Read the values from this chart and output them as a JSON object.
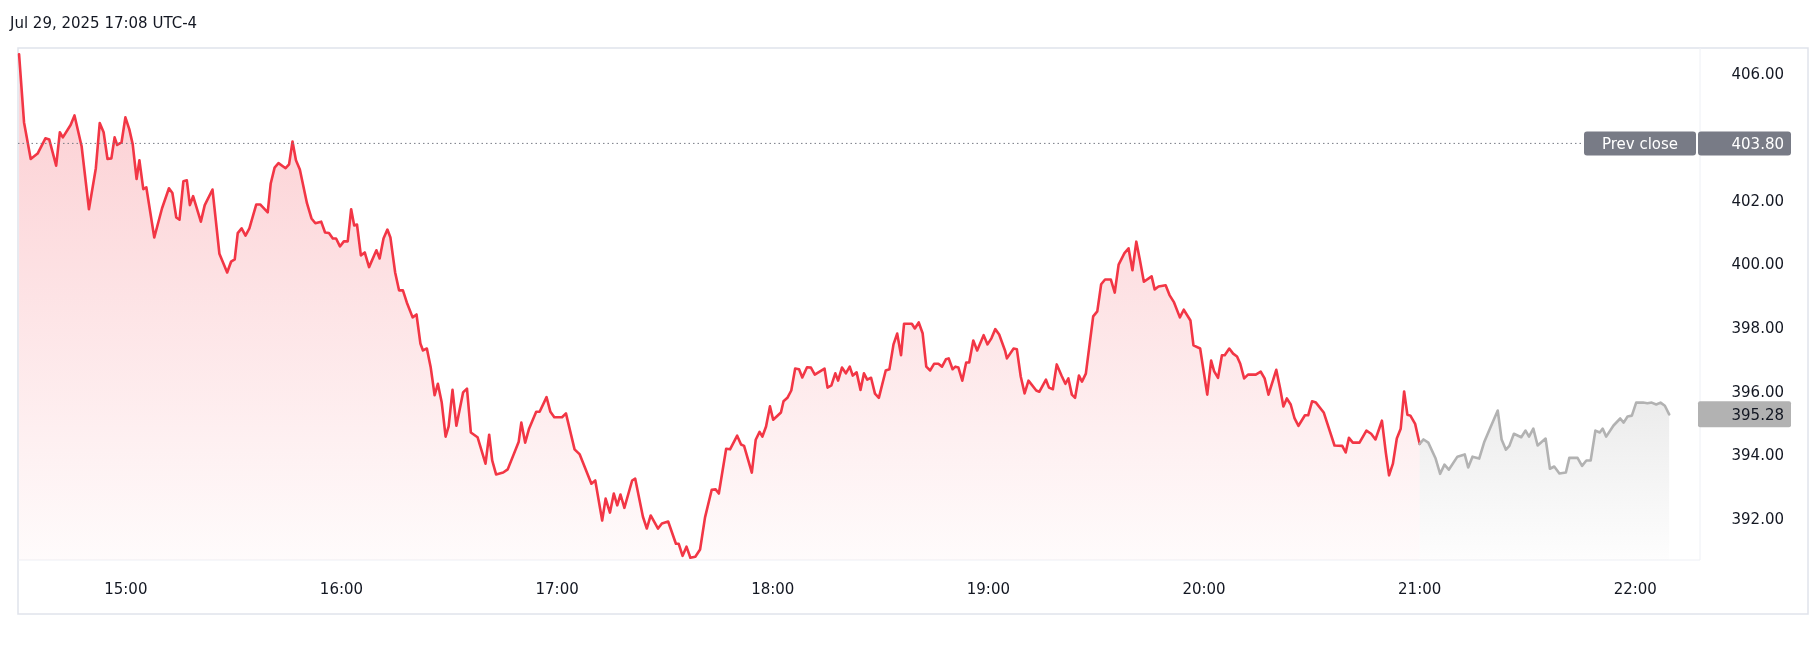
{
  "chart_data": {
    "type": "area",
    "title": "Jul 29, 2025 17:08 UTC-4",
    "xlim": [
      14.5,
      22.3
    ],
    "xticks": [
      {
        "value": 15,
        "label": "15:00"
      },
      {
        "value": 16,
        "label": "16:00"
      },
      {
        "value": 17,
        "label": "17:00"
      },
      {
        "value": 18,
        "label": "18:00"
      },
      {
        "value": 19,
        "label": "19:00"
      },
      {
        "value": 20,
        "label": "20:00"
      },
      {
        "value": 21,
        "label": "21:00"
      },
      {
        "value": 22,
        "label": "22:00"
      }
    ],
    "ylim": [
      390.7,
      406.8
    ],
    "yticks": [
      {
        "value": 392,
        "label": "392.00"
      },
      {
        "value": 394,
        "label": "394.00"
      },
      {
        "value": 395.28,
        "label": "395.28"
      },
      {
        "value": 396,
        "label": "396.00"
      },
      {
        "value": 398,
        "label": "398.00"
      },
      {
        "value": 400,
        "label": "400.00"
      },
      {
        "value": 402,
        "label": "402.00"
      },
      {
        "value": 403.8,
        "label": "403.80"
      },
      {
        "value": 406,
        "label": "406.00"
      }
    ],
    "ref_lines": [
      {
        "axis": "y",
        "value": 403.8,
        "label": "Prev close",
        "color": "#787b86",
        "line_style": "dotted"
      }
    ],
    "series": [
      {
        "color": "#f23645",
        "x": [
          14.505,
          14.528,
          14.559,
          14.591,
          14.627,
          14.645,
          14.677,
          14.694,
          14.708,
          14.744,
          14.762,
          14.795,
          14.829,
          14.861,
          14.879,
          14.897,
          14.915,
          14.933,
          14.948,
          14.96,
          14.98,
          14.998,
          15.016,
          15.032,
          15.05,
          15.063,
          15.081,
          15.095,
          15.132,
          15.168,
          15.2,
          15.216,
          15.234,
          15.249,
          15.267,
          15.283,
          15.297,
          15.312,
          15.348,
          15.366,
          15.402,
          15.434,
          15.47,
          15.488,
          15.505,
          15.519,
          15.537,
          15.555,
          15.573,
          15.605,
          15.623,
          15.658,
          15.672,
          15.69,
          15.708,
          15.741,
          15.757,
          15.773,
          15.789,
          15.807,
          15.84,
          15.861,
          15.879,
          15.906,
          15.924,
          15.942,
          15.96,
          15.975,
          15.993,
          16.011,
          16.029,
          16.045,
          16.059,
          16.072,
          16.09,
          16.108,
          16.128,
          16.162,
          16.177,
          16.195,
          16.213,
          16.227,
          16.249,
          16.267,
          16.285,
          16.303,
          16.33,
          16.348,
          16.366,
          16.378,
          16.396,
          16.414,
          16.432,
          16.447,
          16.465,
          16.483,
          16.497,
          16.515,
          16.533,
          16.564,
          16.582,
          16.6,
          16.631,
          16.668,
          16.685,
          16.699,
          16.717,
          16.75,
          16.771,
          16.822,
          16.834,
          16.852,
          16.87,
          16.903,
          16.919,
          16.951,
          16.969,
          16.987,
          17.023,
          17.041,
          17.081,
          17.105,
          17.159,
          17.177,
          17.209,
          17.225,
          17.245,
          17.263,
          17.279,
          17.294,
          17.312,
          17.348,
          17.362,
          17.398,
          17.416,
          17.434,
          17.468,
          17.486,
          17.515,
          17.551,
          17.564,
          17.582,
          17.6,
          17.618,
          17.641,
          17.663,
          17.686,
          17.717,
          17.735,
          17.75,
          17.784,
          17.802,
          17.835,
          17.853,
          17.867,
          17.903,
          17.921,
          17.939,
          17.952,
          17.969,
          17.987,
          18.002,
          18.038,
          18.05,
          18.068,
          18.086,
          18.104,
          18.122,
          18.137,
          18.159,
          18.177,
          18.195,
          18.24,
          18.254,
          18.272,
          18.29,
          18.303,
          18.321,
          18.339,
          18.357,
          18.371,
          18.389,
          18.407,
          18.423,
          18.438,
          18.456,
          18.474,
          18.492,
          18.524,
          18.541,
          18.56,
          18.577,
          18.595,
          18.609,
          18.645,
          18.659,
          18.677,
          18.695,
          18.712,
          18.73,
          18.748,
          18.768,
          18.785,
          18.803,
          18.816,
          18.834,
          18.847,
          18.861,
          18.879,
          18.897,
          18.911,
          18.93,
          18.948,
          18.978,
          18.996,
          19.014,
          19.032,
          19.05,
          19.077,
          19.086,
          19.117,
          19.132,
          19.15,
          19.168,
          19.186,
          19.222,
          19.236,
          19.267,
          19.281,
          19.299,
          19.317,
          19.339,
          19.357,
          19.371,
          19.387,
          19.402,
          19.42,
          19.434,
          19.452,
          19.486,
          19.505,
          19.523,
          19.541,
          19.568,
          19.586,
          19.604,
          19.631,
          19.65,
          19.668,
          19.686,
          19.703,
          19.721,
          19.757,
          19.771,
          19.789,
          19.822,
          19.84,
          19.861,
          19.888,
          19.906,
          19.937,
          19.951,
          19.982,
          20.015,
          20.033,
          20.047,
          20.065,
          20.083,
          20.096,
          20.117,
          20.135,
          20.153,
          20.168,
          20.186,
          20.204,
          20.24,
          20.263,
          20.281,
          20.299,
          20.335,
          20.353,
          20.368,
          20.384,
          20.402,
          20.42,
          20.438,
          20.468,
          20.483,
          20.501,
          20.519,
          20.555,
          20.605,
          20.641,
          20.657,
          20.672,
          20.69,
          20.721,
          20.753,
          20.775,
          20.795,
          20.825,
          20.843,
          20.858,
          20.876,
          20.894,
          20.912,
          20.928,
          20.943,
          20.957,
          20.979,
          21.0
        ],
        "values": [
          406.6,
          404.46,
          403.31,
          403.48,
          403.96,
          403.92,
          403.1,
          404.15,
          403.99,
          404.38,
          404.68,
          403.71,
          401.73,
          403.02,
          404.44,
          404.15,
          403.31,
          403.33,
          403.99,
          403.75,
          403.83,
          404.62,
          404.25,
          403.77,
          402.68,
          403.27,
          402.36,
          402.42,
          400.84,
          401.76,
          402.39,
          402.24,
          401.47,
          401.4,
          402.61,
          402.64,
          401.86,
          402.14,
          401.34,
          401.86,
          402.35,
          400.33,
          399.74,
          400.08,
          400.15,
          400.98,
          401.13,
          400.9,
          401.13,
          401.88,
          401.88,
          401.63,
          402.54,
          403.04,
          403.18,
          403.02,
          403.14,
          403.86,
          403.27,
          402.98,
          401.92,
          401.44,
          401.29,
          401.34,
          401.0,
          400.98,
          400.81,
          400.81,
          400.56,
          400.72,
          400.72,
          401.73,
          401.22,
          401.25,
          400.28,
          400.37,
          399.91,
          400.44,
          400.18,
          400.81,
          401.09,
          400.84,
          399.74,
          399.18,
          399.18,
          398.8,
          398.33,
          398.42,
          397.51,
          397.29,
          397.35,
          396.75,
          395.88,
          396.24,
          395.65,
          394.58,
          394.9,
          396.05,
          394.92,
          395.97,
          396.09,
          394.71,
          394.56,
          393.73,
          394.64,
          393.83,
          393.39,
          393.45,
          393.55,
          394.42,
          395.02,
          394.39,
          394.83,
          395.36,
          395.36,
          395.82,
          395.36,
          395.19,
          395.19,
          395.31,
          394.18,
          394.02,
          393.1,
          393.2,
          391.94,
          392.63,
          392.19,
          392.79,
          392.42,
          392.76,
          392.34,
          393.2,
          393.26,
          392.06,
          391.69,
          392.1,
          391.69,
          391.85,
          391.91,
          391.21,
          391.21,
          390.83,
          391.12,
          390.77,
          390.8,
          391.03,
          392.04,
          392.91,
          392.92,
          392.79,
          394.2,
          394.18,
          394.61,
          394.33,
          394.29,
          393.45,
          394.48,
          394.73,
          394.58,
          394.9,
          395.53,
          395.11,
          395.34,
          395.69,
          395.8,
          396.03,
          396.72,
          396.7,
          396.44,
          396.76,
          396.75,
          396.53,
          396.72,
          396.12,
          396.19,
          396.57,
          396.34,
          396.75,
          396.57,
          396.78,
          396.5,
          396.6,
          396.05,
          396.57,
          396.37,
          396.43,
          395.93,
          395.8,
          396.66,
          396.7,
          397.48,
          397.82,
          397.14,
          398.13,
          398.13,
          397.98,
          398.17,
          397.83,
          396.78,
          396.66,
          396.87,
          396.87,
          396.78,
          397.01,
          397.04,
          396.7,
          396.78,
          396.75,
          396.34,
          396.91,
          396.91,
          397.6,
          397.29,
          397.77,
          397.48,
          397.67,
          397.96,
          397.79,
          397.29,
          397.04,
          397.35,
          397.33,
          396.47,
          395.94,
          396.34,
          396.03,
          395.99,
          396.37,
          396.12,
          396.07,
          396.85,
          396.5,
          396.24,
          396.41,
          395.9,
          395.8,
          396.5,
          396.31,
          396.56,
          398.36,
          398.52,
          399.37,
          399.52,
          399.52,
          399.11,
          399.99,
          400.35,
          400.5,
          399.81,
          400.71,
          400.12,
          399.45,
          399.62,
          399.21,
          399.3,
          399.34,
          399.03,
          398.8,
          398.33,
          398.57,
          398.23,
          397.45,
          397.35,
          395.9,
          396.97,
          396.63,
          396.43,
          397.14,
          397.14,
          397.35,
          397.19,
          397.1,
          396.87,
          396.41,
          396.53,
          396.53,
          396.62,
          396.41,
          395.9,
          396.68,
          396.09,
          395.53,
          395.78,
          395.59,
          395.15,
          394.92,
          395.25,
          395.25,
          395.69,
          395.65,
          395.34,
          394.3,
          394.29,
          394.08,
          394.54,
          394.39,
          394.39,
          394.77,
          394.67,
          394.49,
          395.08,
          394.08,
          393.36,
          393.73,
          394.52,
          394.83,
          396.0,
          395.27,
          395.24,
          394.98,
          394.35
        ]
      },
      {
        "color": "#b2b2b2",
        "x": [
          21.0,
          21.018,
          21.04,
          21.074,
          21.095,
          21.115,
          21.135,
          21.175,
          21.209,
          21.225,
          21.245,
          21.276,
          21.3,
          21.328,
          21.362,
          21.38,
          21.4,
          21.416,
          21.437,
          21.471,
          21.491,
          21.507,
          21.527,
          21.547,
          21.584,
          21.604,
          21.624,
          21.648,
          21.678,
          21.694,
          21.732,
          21.753,
          21.773,
          21.793,
          21.815,
          21.835,
          21.849,
          21.865,
          21.899,
          21.93,
          21.946,
          21.964,
          21.984,
          22.004,
          22.036,
          22.056,
          22.076,
          22.097,
          22.117,
          22.137,
          22.157
        ],
        "values": [
          394.35,
          394.49,
          394.39,
          393.89,
          393.41,
          393.7,
          393.54,
          393.95,
          394.02,
          393.61,
          393.95,
          393.89,
          394.42,
          394.87,
          395.4,
          394.49,
          394.17,
          394.29,
          394.67,
          394.56,
          394.77,
          394.58,
          394.83,
          394.3,
          394.52,
          393.57,
          393.64,
          393.42,
          393.45,
          393.91,
          393.91,
          393.66,
          393.83,
          393.83,
          394.77,
          394.71,
          394.83,
          394.58,
          394.93,
          395.15,
          395.02,
          395.21,
          395.24,
          395.65,
          395.65,
          395.63,
          395.65,
          395.59,
          395.65,
          395.55,
          395.28
        ]
      }
    ]
  }
}
